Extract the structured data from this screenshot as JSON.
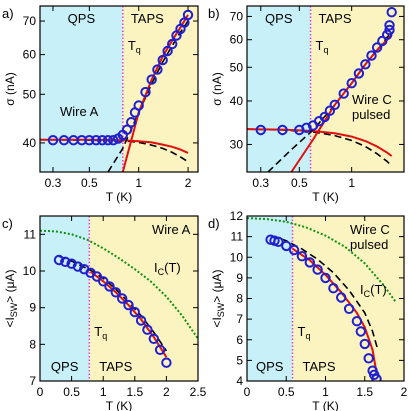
{
  "colors": {
    "qps_fill": "#c8f0f8",
    "taps_fill": "#fcf4c0",
    "marker": "#1f1fd0",
    "fit_red": "#e01010",
    "fit_dash": "#000000",
    "ic_green": "#109010",
    "tq_line": "#e040e0",
    "region_text": "#000000",
    "tq_text": "#e040e0",
    "ic_text": "#109010"
  },
  "chart_data": [
    {
      "panel_label": "a)",
      "type": "scatter",
      "xscale": "log",
      "xlim": [
        0.25,
        2.3
      ],
      "ylim": [
        35,
        75
      ],
      "yscale": "log",
      "xticks": [
        0.3,
        0.5,
        1,
        2
      ],
      "xtick_labels": [
        "0.3",
        "0.5",
        "1",
        "2"
      ],
      "yticks": [
        40,
        50,
        60,
        70
      ],
      "ytick_labels": [
        "40",
        "50",
        "60",
        "70"
      ],
      "xlabel": "T (K)",
      "ylabel": "σ (nA)",
      "regions": {
        "qps": "QPS",
        "taps": "TAPS",
        "boundary": 0.8
      },
      "tq_label": "T",
      "tq_sub": "q",
      "annotations": [
        "Wire A"
      ],
      "points": {
        "x": [
          0.3,
          0.35,
          0.4,
          0.45,
          0.5,
          0.55,
          0.6,
          0.65,
          0.7,
          0.75,
          0.8,
          0.85,
          0.9,
          0.95,
          1.0,
          1.1,
          1.2,
          1.3,
          1.4,
          1.5,
          1.6,
          1.7,
          1.8,
          1.9,
          2.0
        ],
        "y": [
          40.5,
          40.5,
          40.5,
          40.5,
          40.5,
          40.5,
          40.5,
          40.5,
          40.5,
          40.8,
          41.5,
          42.5,
          44,
          46,
          47.5,
          50.5,
          53.5,
          56,
          58.5,
          61,
          63,
          65.5,
          67.5,
          69.5,
          72
        ]
      },
      "red_fit": {
        "x": [
          0.8,
          1.0,
          1.2,
          1.4,
          1.6,
          1.8,
          2.0
        ],
        "y": [
          35,
          46,
          53.5,
          59.5,
          64,
          68,
          72
        ]
      },
      "dash_fit": {
        "x": [
          0.65,
          0.8,
          1.0,
          1.2,
          1.4,
          1.6,
          1.8,
          2.0
        ],
        "y": [
          35,
          39,
          46,
          52.5,
          58,
          62.5,
          66.5,
          70
        ]
      },
      "red_qps": {
        "x": [
          0.25,
          0.5,
          0.8,
          1.0,
          1.2,
          1.4,
          1.6,
          1.8,
          2.0
        ],
        "y": [
          40.6,
          40.6,
          40.5,
          40.3,
          40.1,
          39.7,
          39.3,
          38.8,
          38.2
        ]
      },
      "dash_qps": {
        "x": [
          0.25,
          0.5,
          0.8,
          1.0,
          1.2,
          1.4,
          1.6,
          1.8,
          2.0
        ],
        "y": [
          40.6,
          40.5,
          40.4,
          40.1,
          39.6,
          39,
          38.3,
          37.5,
          36.7
        ]
      }
    },
    {
      "panel_label": "b)",
      "type": "scatter",
      "xscale": "log",
      "xlim": [
        0.25,
        2.0
      ],
      "ylim": [
        25,
        75
      ],
      "yscale": "log",
      "xticks": [
        0.3,
        0.5,
        1
      ],
      "xtick_labels": [
        "0.3",
        "0.5",
        "1"
      ],
      "yticks": [
        30,
        40,
        50,
        60,
        70
      ],
      "ytick_labels": [
        "30",
        "40",
        "50",
        "60",
        "70"
      ],
      "xlabel": "T (K)",
      "ylabel": "σ (nA)",
      "regions": {
        "qps": "QPS",
        "taps": "TAPS",
        "boundary": 0.58
      },
      "tq_label": "T",
      "tq_sub": "q",
      "annotations": [
        "Wire C",
        "pulsed"
      ],
      "points": {
        "x": [
          0.3,
          0.4,
          0.5,
          0.55,
          0.6,
          0.65,
          0.7,
          0.75,
          0.8,
          0.9,
          1.0,
          1.1,
          1.2,
          1.3,
          1.4,
          1.5,
          1.6,
          1.65,
          1.65,
          1.7
        ],
        "y": [
          33,
          33,
          33,
          33.5,
          34,
          35,
          36,
          37.5,
          39,
          42,
          45,
          48,
          51,
          54,
          57,
          59.5,
          62,
          64,
          66,
          72
        ]
      },
      "red_fit": {
        "x": [
          0.45,
          0.6,
          0.8,
          1.0,
          1.2,
          1.4,
          1.6,
          1.7
        ],
        "y": [
          25,
          31,
          39,
          45,
          51,
          56,
          60,
          62
        ]
      },
      "dash_fit": {
        "x": [
          0.33,
          0.45,
          0.6,
          0.8,
          1.0,
          1.2,
          1.4,
          1.6,
          1.7
        ],
        "y": [
          25,
          29,
          33,
          39,
          45,
          51,
          56,
          61,
          63
        ]
      },
      "red_qps": {
        "x": [
          0.25,
          0.4,
          0.6,
          0.8,
          1.0,
          1.2,
          1.4,
          1.6,
          1.7
        ],
        "y": [
          33.2,
          33.1,
          32.8,
          32.3,
          31.6,
          30.7,
          29.6,
          28.4,
          27.8
        ]
      },
      "dash_qps": {
        "x": [
          0.25,
          0.4,
          0.6,
          0.8,
          1.0,
          1.2,
          1.4,
          1.6,
          1.7
        ],
        "y": [
          33.2,
          33,
          32.6,
          31.8,
          30.8,
          29.6,
          28.2,
          26.8,
          26
        ]
      }
    },
    {
      "panel_label": "c)",
      "type": "scatter",
      "xscale": "linear",
      "xlim": [
        0,
        2.5
      ],
      "ylim": [
        7,
        11.5
      ],
      "yscale": "linear",
      "xticks": [
        0,
        0.5,
        1,
        1.5,
        2,
        2.5
      ],
      "xtick_labels": [
        "0",
        "0.5",
        "1",
        "1.5",
        "2",
        "2.5"
      ],
      "yticks": [
        7,
        8,
        9,
        10,
        11
      ],
      "ytick_labels": [
        "7",
        "8",
        "9",
        "10",
        "11"
      ],
      "xlabel": "T (K)",
      "ylabel": "<I",
      "ylabel_sub": "SW",
      "ylabel_tail": "> (μA)",
      "regions": {
        "qps": "QPS",
        "taps": "TAPS",
        "boundary": 0.78
      },
      "tq_label": "T",
      "tq_sub": "q",
      "annotations": [
        "Wire A"
      ],
      "ic_label": "I",
      "ic_sub": "C",
      "ic_tail": "(T)",
      "points": {
        "x": [
          0.3,
          0.4,
          0.5,
          0.6,
          0.7,
          0.8,
          0.9,
          1.0,
          1.1,
          1.2,
          1.3,
          1.4,
          1.5,
          1.6,
          1.7,
          1.8,
          1.9,
          2.0
        ],
        "y": [
          10.3,
          10.25,
          10.2,
          10.12,
          10.05,
          9.95,
          9.85,
          9.72,
          9.58,
          9.42,
          9.25,
          9.07,
          8.88,
          8.65,
          8.4,
          8.15,
          7.85,
          7.5
        ]
      },
      "red_fit": {
        "x": [
          0.8,
          1.0,
          1.2,
          1.4,
          1.6,
          1.8,
          2.0
        ],
        "y": [
          9.98,
          9.72,
          9.42,
          9.07,
          8.68,
          8.2,
          7.65
        ]
      },
      "dash_fit": {
        "x": [
          0.3,
          0.5,
          0.8,
          1.0,
          1.2,
          1.4,
          1.6,
          1.8,
          2.0
        ],
        "y": [
          10.4,
          10.27,
          10.02,
          9.8,
          9.5,
          9.15,
          8.78,
          8.33,
          7.82
        ]
      },
      "ic_curve": {
        "x": [
          0,
          0.25,
          0.5,
          0.75,
          1.0,
          1.25,
          1.5,
          1.75,
          2.0,
          2.25,
          2.5
        ],
        "y": [
          11.1,
          11.08,
          11.0,
          10.85,
          10.62,
          10.35,
          10.05,
          9.72,
          9.3,
          8.78,
          8.15
        ]
      }
    },
    {
      "panel_label": "d)",
      "type": "scatter",
      "xscale": "linear",
      "xlim": [
        0,
        2
      ],
      "ylim": [
        4,
        12
      ],
      "yscale": "linear",
      "xticks": [
        0,
        0.5,
        1,
        1.5,
        2
      ],
      "xtick_labels": [
        "0",
        "0.5",
        "1",
        "1.5",
        "2"
      ],
      "yticks": [
        4,
        5,
        6,
        7,
        8,
        9,
        10,
        11,
        12
      ],
      "ytick_labels": [
        "4",
        "5",
        "6",
        "7",
        "8",
        "9",
        "10",
        "11",
        "12"
      ],
      "xlabel": "T (K)",
      "ylabel": "<I",
      "ylabel_sub": "SW",
      "ylabel_tail": "> (μA)",
      "regions": {
        "qps": "QPS",
        "taps": "TAPS",
        "boundary": 0.58
      },
      "tq_label": "T",
      "tq_sub": "q",
      "annotations": [
        "Wire C",
        "pulsed"
      ],
      "ic_label": "I",
      "ic_sub": "C",
      "ic_tail": "(T)",
      "points": {
        "x": [
          0.3,
          0.35,
          0.4,
          0.5,
          0.6,
          0.7,
          0.8,
          0.9,
          1.0,
          1.1,
          1.2,
          1.3,
          1.4,
          1.45,
          1.5,
          1.55,
          1.6,
          1.62,
          1.65
        ],
        "y": [
          10.85,
          10.8,
          10.75,
          10.55,
          10.35,
          10.05,
          9.75,
          9.4,
          9.0,
          8.5,
          8.05,
          7.5,
          6.9,
          6.4,
          5.8,
          5.1,
          4.5,
          4.3,
          4.1
        ]
      },
      "red_fit": {
        "x": [
          0.58,
          0.8,
          1.0,
          1.2,
          1.4,
          1.5,
          1.6,
          1.65
        ],
        "y": [
          10.42,
          9.85,
          9.15,
          8.3,
          7.3,
          6.6,
          5.5,
          4.4
        ]
      },
      "dash_fit": {
        "x": [
          0.3,
          0.5,
          0.7,
          0.9,
          1.1,
          1.3,
          1.5,
          1.6,
          1.66
        ],
        "y": [
          11.05,
          10.8,
          10.4,
          9.9,
          9.25,
          8.4,
          7.3,
          6.4,
          5.6
        ]
      },
      "ic_curve": {
        "x": [
          0,
          0.25,
          0.5,
          0.75,
          1.0,
          1.25,
          1.5,
          1.75,
          1.9
        ],
        "y": [
          11.9,
          11.85,
          11.72,
          11.45,
          11.05,
          10.5,
          9.7,
          8.6,
          7.8
        ]
      }
    }
  ]
}
